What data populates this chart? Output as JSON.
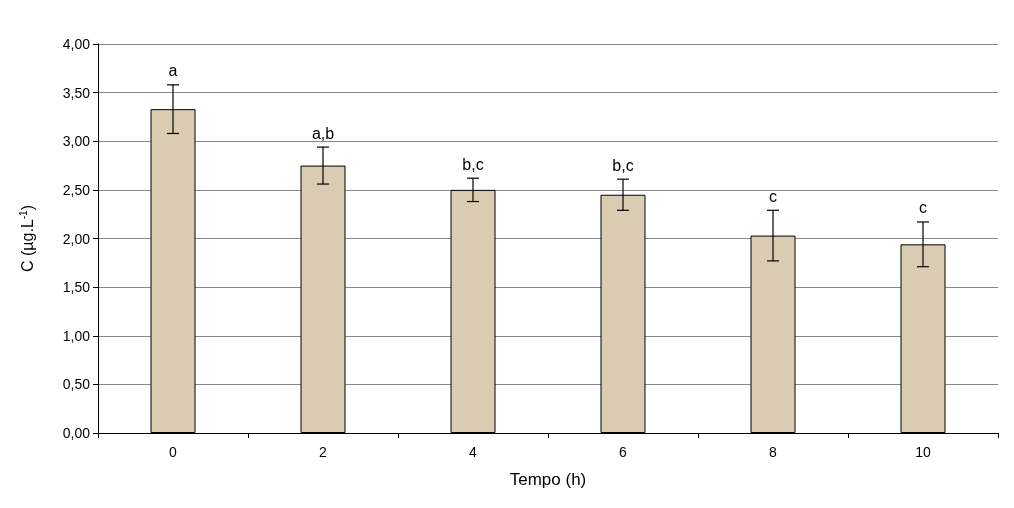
{
  "chart_data": {
    "type": "bar",
    "xlabel": "Tempo (h)",
    "ylabel": "C (µg.L$^{-1}$)",
    "categories": [
      "0",
      "2",
      "4",
      "6",
      "8",
      "10"
    ],
    "values": [
      3.33,
      2.75,
      2.5,
      2.45,
      2.03,
      1.94
    ],
    "errors": [
      0.25,
      0.19,
      0.12,
      0.16,
      0.26,
      0.23
    ],
    "color": "#d9ccb2",
    "ylim": [
      0,
      4
    ],
    "yticks": [
      {
        "value": 0,
        "label": "0,00"
      },
      {
        "value": 0.5,
        "label": "0,50"
      },
      {
        "value": 1,
        "label": "1,00"
      },
      {
        "value": 1.5,
        "label": "1,50"
      },
      {
        "value": 2,
        "label": "2,00"
      },
      {
        "value": 2.5,
        "label": "2,50"
      },
      {
        "value": 3,
        "label": "3,00"
      },
      {
        "value": 3.5,
        "label": "3,50"
      },
      {
        "value": 4,
        "label": "4,00"
      }
    ],
    "grid": "y",
    "annotations": [
      {
        "text": "a",
        "x": "0",
        "y": 3.58
      },
      {
        "text": "a,b",
        "x": "2",
        "y": 2.94
      },
      {
        "text": "b,c",
        "x": "4",
        "y": 2.62
      },
      {
        "text": "b,c",
        "x": "6",
        "y": 2.61
      },
      {
        "text": "c",
        "x": "8",
        "y": 2.29
      },
      {
        "text": "c",
        "x": "10",
        "y": 2.17
      }
    ]
  }
}
